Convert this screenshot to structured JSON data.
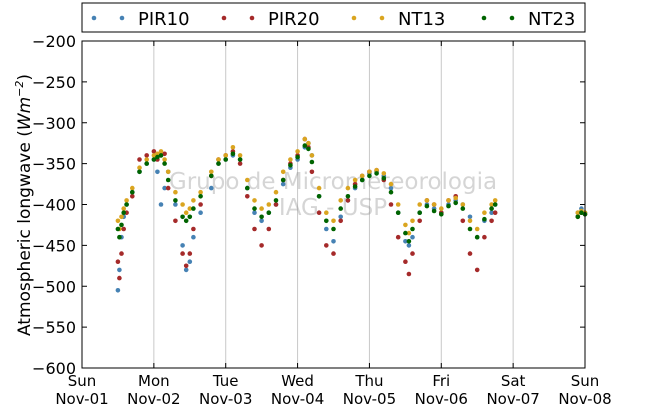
{
  "chart_data": {
    "type": "scatter",
    "title": "",
    "ylabel_main": "Atmospheric longwave (",
    "ylabel_unit": "Wm",
    "ylabel_exp": "−2",
    "ylabel_close": ")",
    "ylim": [
      -600,
      -200
    ],
    "y_ticks": [
      -600,
      -550,
      -500,
      -450,
      -400,
      -350,
      -300,
      -250,
      -200
    ],
    "y_tick_labels": [
      "−600",
      "−550",
      "−500",
      "−450",
      "−400",
      "−350",
      "−300",
      "−250",
      "−200"
    ],
    "xlim": [
      0,
      7
    ],
    "x_ticks": [
      {
        "day": "Sun",
        "date": "Nov-01",
        "x": 0
      },
      {
        "day": "Mon",
        "date": "Nov-02",
        "x": 1
      },
      {
        "day": "Tue",
        "date": "Nov-03",
        "x": 2
      },
      {
        "day": "Wed",
        "date": "Nov-04",
        "x": 3
      },
      {
        "day": "Thu",
        "date": "Nov-05",
        "x": 4
      },
      {
        "day": "Fri",
        "date": "Nov-06",
        "x": 5
      },
      {
        "day": "Sat",
        "date": "Nov-07",
        "x": 6
      },
      {
        "day": "Sun",
        "date": "Nov-08",
        "x": 7
      }
    ],
    "grid": "vertical",
    "legend_position": "top",
    "watermark": [
      "Grupo de Micrometeorologia",
      "IAG - USP"
    ],
    "series": [
      {
        "name": "PIR10",
        "color": "#4682b4",
        "points": [
          [
            0.5,
            -505
          ],
          [
            0.52,
            -480
          ],
          [
            0.55,
            -440
          ],
          [
            0.58,
            -415
          ],
          [
            0.62,
            -400
          ],
          [
            0.7,
            -385
          ],
          [
            0.8,
            -360
          ],
          [
            0.9,
            -350
          ],
          [
            1.0,
            -345
          ],
          [
            1.05,
            -360
          ],
          [
            1.1,
            -400
          ],
          [
            1.15,
            -380
          ],
          [
            1.2,
            -360
          ],
          [
            1.3,
            -400
          ],
          [
            1.4,
            -450
          ],
          [
            1.45,
            -480
          ],
          [
            1.5,
            -470
          ],
          [
            1.55,
            -440
          ],
          [
            1.65,
            -410
          ],
          [
            1.8,
            -380
          ],
          [
            1.9,
            -350
          ],
          [
            2.0,
            -345
          ],
          [
            2.1,
            -340
          ],
          [
            2.2,
            -345
          ],
          [
            2.3,
            -380
          ],
          [
            2.4,
            -410
          ],
          [
            2.5,
            -420
          ],
          [
            2.6,
            -410
          ],
          [
            2.7,
            -400
          ],
          [
            2.8,
            -375
          ],
          [
            2.9,
            -355
          ],
          [
            3.0,
            -345
          ],
          [
            3.1,
            -330
          ],
          [
            3.15,
            -325
          ],
          [
            3.2,
            -340
          ],
          [
            3.3,
            -390
          ],
          [
            3.4,
            -430
          ],
          [
            3.5,
            -445
          ],
          [
            3.6,
            -415
          ],
          [
            3.7,
            -395
          ],
          [
            3.8,
            -380
          ],
          [
            3.9,
            -370
          ],
          [
            4.0,
            -362
          ],
          [
            4.1,
            -360
          ],
          [
            4.2,
            -365
          ],
          [
            4.3,
            -380
          ],
          [
            4.4,
            -410
          ],
          [
            4.5,
            -445
          ],
          [
            4.55,
            -450
          ],
          [
            4.6,
            -440
          ],
          [
            4.7,
            -410
          ],
          [
            4.8,
            -400
          ],
          [
            4.9,
            -405
          ],
          [
            5.0,
            -410
          ],
          [
            5.1,
            -400
          ],
          [
            5.2,
            -395
          ],
          [
            5.3,
            -400
          ],
          [
            5.4,
            -415
          ],
          [
            5.5,
            -440
          ],
          [
            5.6,
            -420
          ],
          [
            5.7,
            -410
          ],
          [
            5.75,
            -400
          ],
          [
            6.9,
            -410
          ],
          [
            6.95,
            -405
          ],
          [
            7.0,
            -410
          ]
        ]
      },
      {
        "name": "PIR20",
        "color": "#a52a2a",
        "points": [
          [
            0.5,
            -470
          ],
          [
            0.52,
            -490
          ],
          [
            0.55,
            -460
          ],
          [
            0.58,
            -430
          ],
          [
            0.62,
            -410
          ],
          [
            0.7,
            -390
          ],
          [
            0.8,
            -345
          ],
          [
            0.9,
            -340
          ],
          [
            1.0,
            -335
          ],
          [
            1.05,
            -345
          ],
          [
            1.1,
            -340
          ],
          [
            1.15,
            -338
          ],
          [
            1.2,
            -380
          ],
          [
            1.3,
            -420
          ],
          [
            1.4,
            -460
          ],
          [
            1.45,
            -475
          ],
          [
            1.5,
            -460
          ],
          [
            1.55,
            -430
          ],
          [
            1.65,
            -400
          ],
          [
            1.8,
            -365
          ],
          [
            1.9,
            -345
          ],
          [
            2.0,
            -340
          ],
          [
            2.1,
            -335
          ],
          [
            2.2,
            -350
          ],
          [
            2.3,
            -390
          ],
          [
            2.4,
            -430
          ],
          [
            2.5,
            -450
          ],
          [
            2.6,
            -430
          ],
          [
            2.7,
            -400
          ],
          [
            2.8,
            -370
          ],
          [
            2.9,
            -350
          ],
          [
            3.0,
            -340
          ],
          [
            3.1,
            -320
          ],
          [
            3.15,
            -330
          ],
          [
            3.2,
            -360
          ],
          [
            3.3,
            -410
          ],
          [
            3.4,
            -450
          ],
          [
            3.5,
            -460
          ],
          [
            3.6,
            -420
          ],
          [
            3.7,
            -395
          ],
          [
            3.8,
            -375
          ],
          [
            3.9,
            -365
          ],
          [
            4.0,
            -360
          ],
          [
            4.1,
            -358
          ],
          [
            4.2,
            -370
          ],
          [
            4.3,
            -400
          ],
          [
            4.4,
            -440
          ],
          [
            4.5,
            -470
          ],
          [
            4.55,
            -485
          ],
          [
            4.6,
            -460
          ],
          [
            4.7,
            -420
          ],
          [
            4.8,
            -395
          ],
          [
            4.9,
            -400
          ],
          [
            5.0,
            -410
          ],
          [
            5.1,
            -395
          ],
          [
            5.2,
            -390
          ],
          [
            5.3,
            -420
          ],
          [
            5.4,
            -460
          ],
          [
            5.5,
            -480
          ],
          [
            5.6,
            -440
          ],
          [
            5.7,
            -420
          ],
          [
            5.75,
            -410
          ],
          [
            6.9,
            -415
          ],
          [
            6.95,
            -410
          ],
          [
            7.0,
            -412
          ]
        ]
      },
      {
        "name": "NT13",
        "color": "#daa520",
        "points": [
          [
            0.5,
            -420
          ],
          [
            0.52,
            -430
          ],
          [
            0.55,
            -415
          ],
          [
            0.58,
            -405
          ],
          [
            0.62,
            -395
          ],
          [
            0.7,
            -380
          ],
          [
            0.8,
            -355
          ],
          [
            0.9,
            -345
          ],
          [
            1.0,
            -340
          ],
          [
            1.05,
            -338
          ],
          [
            1.1,
            -335
          ],
          [
            1.15,
            -345
          ],
          [
            1.2,
            -360
          ],
          [
            1.3,
            -385
          ],
          [
            1.4,
            -400
          ],
          [
            1.45,
            -410
          ],
          [
            1.5,
            -405
          ],
          [
            1.55,
            -395
          ],
          [
            1.65,
            -385
          ],
          [
            1.8,
            -360
          ],
          [
            1.9,
            -345
          ],
          [
            2.0,
            -340
          ],
          [
            2.1,
            -330
          ],
          [
            2.2,
            -340
          ],
          [
            2.3,
            -370
          ],
          [
            2.4,
            -395
          ],
          [
            2.5,
            -405
          ],
          [
            2.6,
            -400
          ],
          [
            2.7,
            -385
          ],
          [
            2.8,
            -360
          ],
          [
            2.9,
            -345
          ],
          [
            3.0,
            -335
          ],
          [
            3.1,
            -320
          ],
          [
            3.15,
            -325
          ],
          [
            3.2,
            -340
          ],
          [
            3.3,
            -380
          ],
          [
            3.4,
            -410
          ],
          [
            3.5,
            -420
          ],
          [
            3.6,
            -395
          ],
          [
            3.7,
            -380
          ],
          [
            3.8,
            -370
          ],
          [
            3.9,
            -365
          ],
          [
            4.0,
            -360
          ],
          [
            4.1,
            -358
          ],
          [
            4.2,
            -362
          ],
          [
            4.3,
            -375
          ],
          [
            4.4,
            -400
          ],
          [
            4.5,
            -425
          ],
          [
            4.55,
            -435
          ],
          [
            4.6,
            -420
          ],
          [
            4.7,
            -400
          ],
          [
            4.8,
            -395
          ],
          [
            4.9,
            -400
          ],
          [
            5.0,
            -405
          ],
          [
            5.1,
            -395
          ],
          [
            5.2,
            -392
          ],
          [
            5.3,
            -400
          ],
          [
            5.4,
            -420
          ],
          [
            5.5,
            -430
          ],
          [
            5.6,
            -410
          ],
          [
            5.7,
            -400
          ],
          [
            5.75,
            -395
          ],
          [
            6.9,
            -410
          ],
          [
            6.95,
            -408
          ],
          [
            7.0,
            -410
          ]
        ]
      },
      {
        "name": "NT23",
        "color": "#006400",
        "points": [
          [
            0.5,
            -430
          ],
          [
            0.52,
            -440
          ],
          [
            0.55,
            -425
          ],
          [
            0.58,
            -410
          ],
          [
            0.62,
            -400
          ],
          [
            0.7,
            -385
          ],
          [
            0.8,
            -360
          ],
          [
            0.9,
            -350
          ],
          [
            1.0,
            -345
          ],
          [
            1.05,
            -342
          ],
          [
            1.1,
            -340
          ],
          [
            1.15,
            -350
          ],
          [
            1.2,
            -370
          ],
          [
            1.3,
            -395
          ],
          [
            1.4,
            -415
          ],
          [
            1.45,
            -420
          ],
          [
            1.5,
            -415
          ],
          [
            1.55,
            -405
          ],
          [
            1.65,
            -390
          ],
          [
            1.8,
            -365
          ],
          [
            1.9,
            -350
          ],
          [
            2.0,
            -345
          ],
          [
            2.1,
            -338
          ],
          [
            2.2,
            -345
          ],
          [
            2.3,
            -380
          ],
          [
            2.4,
            -405
          ],
          [
            2.5,
            -415
          ],
          [
            2.6,
            -410
          ],
          [
            2.7,
            -395
          ],
          [
            2.8,
            -370
          ],
          [
            2.9,
            -352
          ],
          [
            3.0,
            -342
          ],
          [
            3.1,
            -328
          ],
          [
            3.15,
            -332
          ],
          [
            3.2,
            -348
          ],
          [
            3.3,
            -390
          ],
          [
            3.4,
            -420
          ],
          [
            3.5,
            -430
          ],
          [
            3.6,
            -405
          ],
          [
            3.7,
            -390
          ],
          [
            3.8,
            -378
          ],
          [
            3.9,
            -370
          ],
          [
            4.0,
            -365
          ],
          [
            4.1,
            -362
          ],
          [
            4.2,
            -368
          ],
          [
            4.3,
            -385
          ],
          [
            4.4,
            -410
          ],
          [
            4.5,
            -435
          ],
          [
            4.55,
            -445
          ],
          [
            4.6,
            -430
          ],
          [
            4.7,
            -410
          ],
          [
            4.8,
            -402
          ],
          [
            4.9,
            -408
          ],
          [
            5.0,
            -412
          ],
          [
            5.1,
            -402
          ],
          [
            5.2,
            -398
          ],
          [
            5.3,
            -405
          ],
          [
            5.4,
            -430
          ],
          [
            5.5,
            -440
          ],
          [
            5.6,
            -418
          ],
          [
            5.7,
            -405
          ],
          [
            5.75,
            -400
          ],
          [
            6.9,
            -415
          ],
          [
            6.95,
            -410
          ],
          [
            7.0,
            -412
          ]
        ]
      }
    ]
  }
}
